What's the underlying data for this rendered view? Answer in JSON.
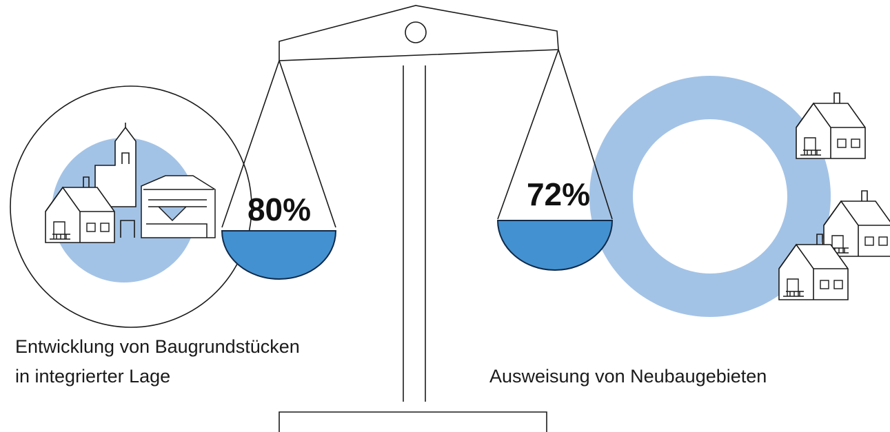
{
  "left": {
    "value_label": "80%",
    "caption_lines": [
      "Entwicklung von Baugrundstücken",
      "in integrierter Lage"
    ]
  },
  "right": {
    "value_label": "72%",
    "caption_lines": [
      "Ausweisung von Neubaugebieten"
    ]
  }
}
